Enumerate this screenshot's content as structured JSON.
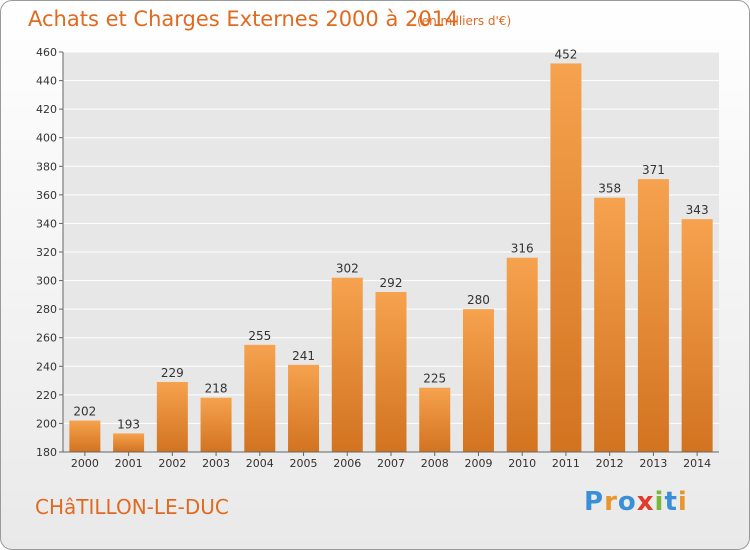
{
  "header": {
    "title": "Achats et Charges Externes 2000 à 2014",
    "subtitle": "(en milliers d'€)"
  },
  "footer": {
    "commune": "CHâTILLON-LE-DUC",
    "logo_letters": [
      "P",
      "r",
      "o",
      "x",
      "i",
      "t",
      "i"
    ],
    "logo_colors": [
      "#3a8fd6",
      "#e8952c",
      "#3a8fd6",
      "#e23a2b",
      "#7ab83a",
      "#3a8fd6",
      "#e8952c"
    ]
  },
  "chart_data": {
    "type": "bar",
    "title": "Achats et Charges Externes 2000 à 2014",
    "subtitle": "(en milliers d'€)",
    "categories": [
      "2000",
      "2001",
      "2002",
      "2003",
      "2004",
      "2005",
      "2006",
      "2007",
      "2008",
      "2009",
      "2010",
      "2011",
      "2012",
      "2013",
      "2014"
    ],
    "values": [
      202,
      193,
      229,
      218,
      255,
      241,
      302,
      292,
      225,
      280,
      316,
      452,
      358,
      371,
      343
    ],
    "ylim": [
      180,
      460
    ],
    "yticks": [
      180,
      200,
      220,
      240,
      260,
      280,
      300,
      320,
      340,
      360,
      380,
      400,
      420,
      440,
      460
    ],
    "grid": true,
    "bar_color": "#f0923a",
    "bar_color_dark": "#d27320"
  }
}
